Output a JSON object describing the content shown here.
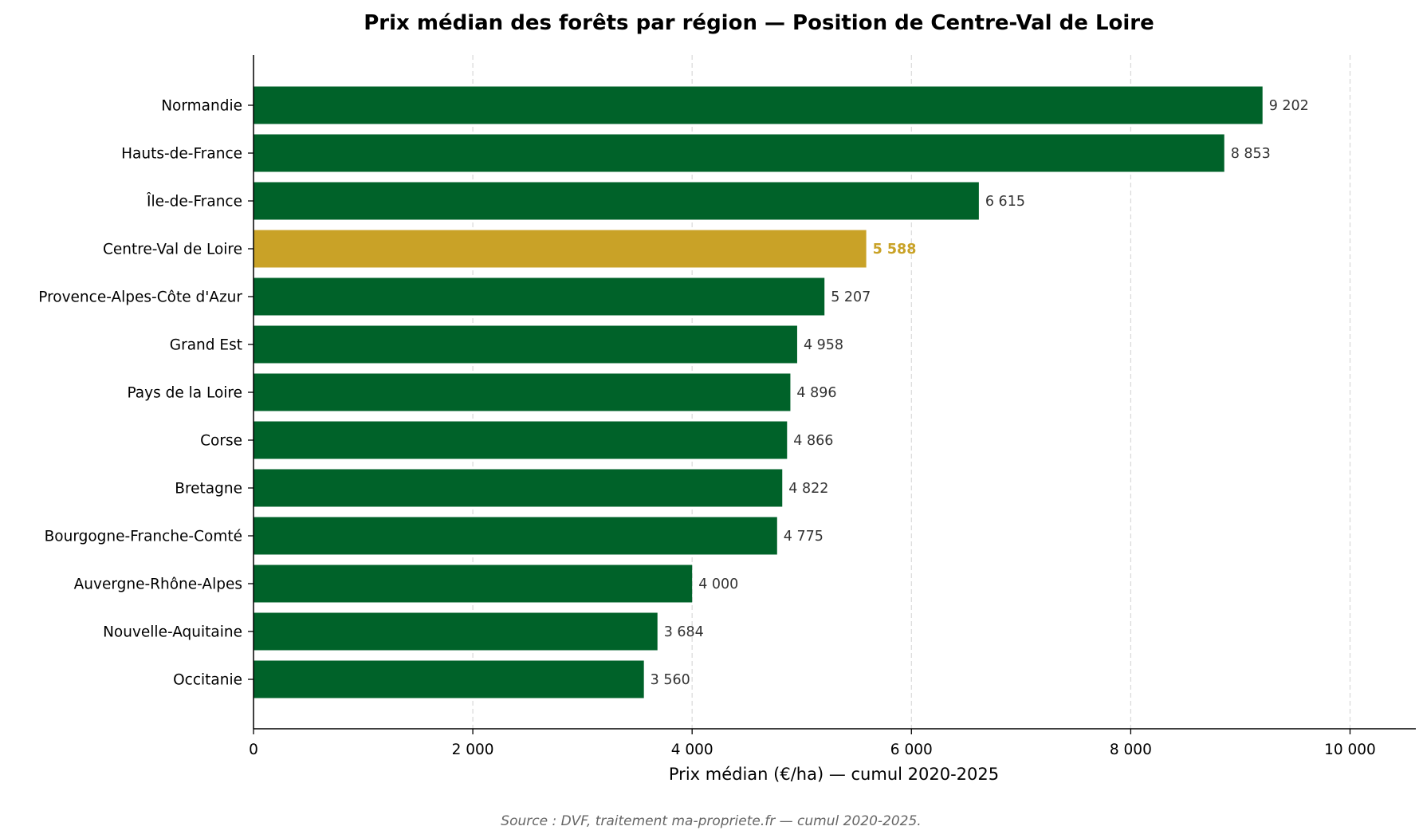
{
  "chart_data": {
    "type": "bar",
    "orientation": "horizontal",
    "title": "Prix médian des forêts par région — Position de Centre-Val de Loire",
    "xlabel": "Prix médian (€/ha) — cumul 2020-2025",
    "ylabel": "",
    "xlim": [
      0,
      10600
    ],
    "xticks": [
      0,
      2000,
      4000,
      6000,
      8000,
      10000
    ],
    "xtick_labels": [
      "0",
      "2 000",
      "4 000",
      "6 000",
      "8 000",
      "10 000"
    ],
    "grid": "vertical dashed",
    "categories": [
      "Normandie",
      "Hauts-de-France",
      "Île-de-France",
      "Centre-Val de Loire",
      "Provence-Alpes-Côte d'Azur",
      "Grand Est",
      "Pays de la Loire",
      "Corse",
      "Bretagne",
      "Bourgogne-Franche-Comté",
      "Auvergne-Rhône-Alpes",
      "Nouvelle-Aquitaine",
      "Occitanie"
    ],
    "values": [
      9202,
      8853,
      6615,
      5588,
      5207,
      4958,
      4896,
      4866,
      4822,
      4775,
      4000,
      3684,
      3560
    ],
    "value_labels": [
      "9 202",
      "8 853",
      "6 615",
      "5 588",
      "5 207",
      "4 958",
      "4 896",
      "4 866",
      "4 822",
      "4 775",
      "4 000",
      "3 684",
      "3 560"
    ],
    "highlight": "Centre-Val de Loire",
    "colors": {
      "bar": "#006229",
      "highlight": "#c9a227",
      "grid": "#d9d9d9",
      "axis": "#000000"
    }
  },
  "source": "Source : DVF, traitement ma-propriete.fr — cumul 2020-2025."
}
